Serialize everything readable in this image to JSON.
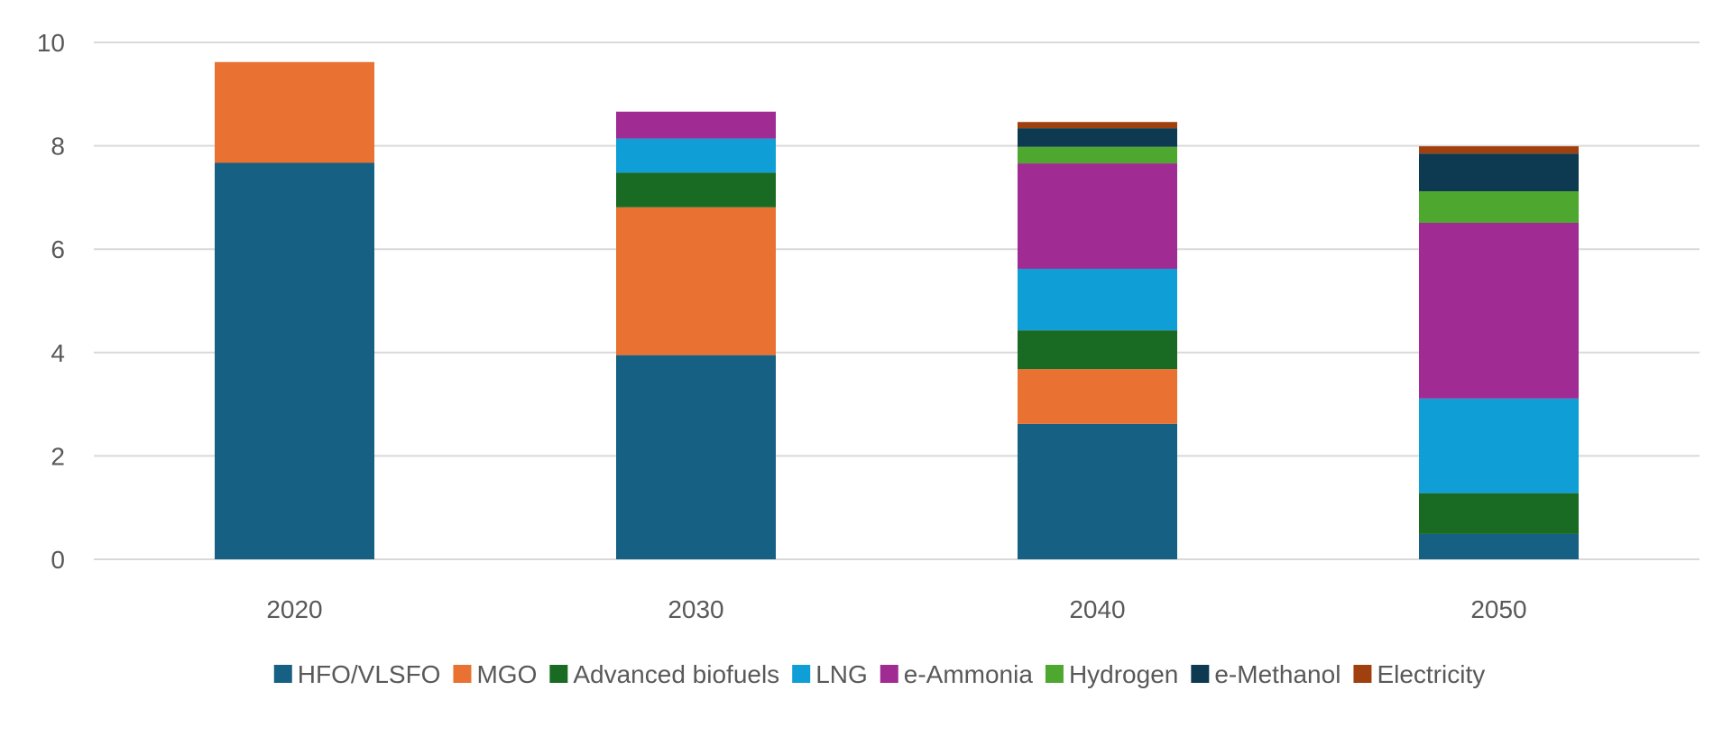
{
  "chart_data": {
    "type": "bar",
    "stacked": true,
    "categories": [
      "2020",
      "2030",
      "2040",
      "2050"
    ],
    "ylim": [
      0,
      10
    ],
    "yticks": [
      "0",
      "2",
      "4",
      "6",
      "8",
      "10"
    ],
    "grid": true,
    "legend_position": "bottom",
    "series": [
      {
        "name": "HFO/VLSFO",
        "color": "#166083",
        "values": [
          7.67,
          3.95,
          2.62,
          0.49
        ]
      },
      {
        "name": "MGO",
        "color": "#E97132",
        "values": [
          1.95,
          2.86,
          1.06,
          0
        ]
      },
      {
        "name": "Advanced biofuels",
        "color": "#196B24",
        "values": [
          0,
          0.67,
          0.75,
          0.79
        ]
      },
      {
        "name": "LNG",
        "color": "#0F9ED5",
        "values": [
          0,
          0.66,
          1.19,
          1.83
        ]
      },
      {
        "name": "e-Ammonia",
        "color": "#A02B93",
        "values": [
          0,
          0.52,
          2.04,
          3.4
        ]
      },
      {
        "name": "Hydrogen",
        "color": "#4EA72E",
        "values": [
          0,
          0,
          0.32,
          0.61
        ]
      },
      {
        "name": "e-Methanol",
        "color": "#0E3A51",
        "values": [
          0,
          0,
          0.36,
          0.73
        ]
      },
      {
        "name": "Electricity",
        "color": "#A0400F",
        "values": [
          0,
          0,
          0.12,
          0.14
        ]
      }
    ]
  }
}
